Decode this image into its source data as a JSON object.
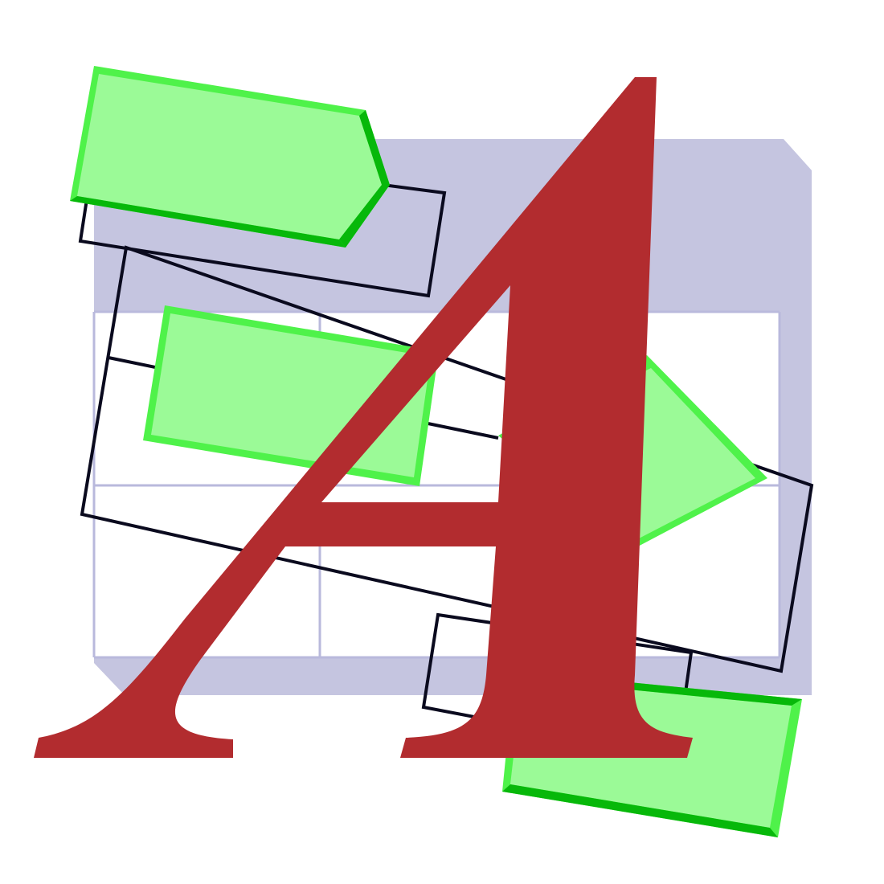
{
  "icon": {
    "name": "diagram-text-icon",
    "letter": "A"
  },
  "colors": {
    "background": "#ffffff",
    "panel": "#c5c5e0",
    "grid_cell": "#ffffff",
    "grid_line": "#b9b9dc",
    "outline": "#0a0a1e",
    "shape_fill": "#a8fca5",
    "shape_edge_light": "#4ff24a",
    "shape_edge_dark": "#07b80a",
    "letter": "#b22c2f"
  }
}
